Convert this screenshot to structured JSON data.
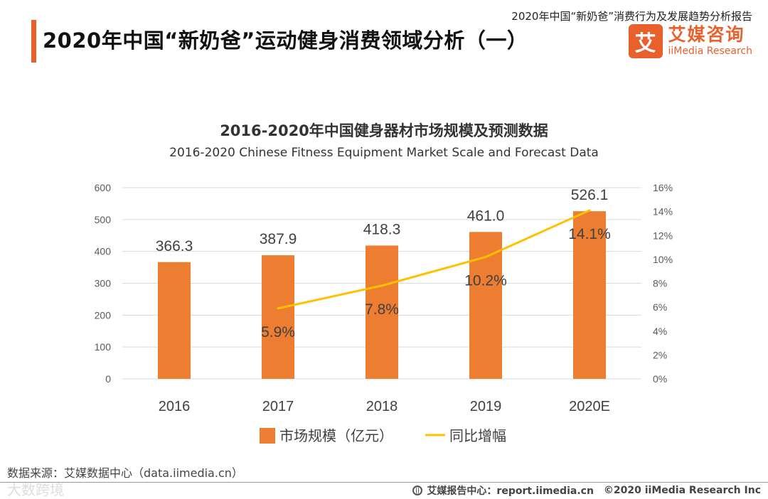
{
  "header": {
    "report_title": "2020年中国“新奶爸”消费行为及发展趋势分析报告",
    "page_title": "2020年中国“新奶爸”运动健身消费领域分析（一）",
    "logo_cn": "艾媒咨询",
    "logo_en": "iiMedia Research",
    "logo_mark": "艾"
  },
  "colors": {
    "accent": "#e8602c",
    "bar": "#ed7d31",
    "line": "#ffc000"
  },
  "chart_data": {
    "type": "bar",
    "title": "2016-2020年中国健身器材市场规模及预测数据",
    "subtitle": "2016-2020 Chinese Fitness Equipment Market Scale and Forecast Data",
    "categories": [
      "2016",
      "2017",
      "2018",
      "2019",
      "2020E"
    ],
    "left_axis": {
      "ticks": [
        "0",
        "100",
        "200",
        "300",
        "400",
        "500",
        "600"
      ],
      "ylim": [
        0,
        600
      ]
    },
    "right_axis": {
      "ticks": [
        "0%",
        "2%",
        "4%",
        "6%",
        "8%",
        "10%",
        "12%",
        "14%",
        "16%"
      ],
      "ylim": [
        0,
        16
      ]
    },
    "series": [
      {
        "name": "市场规模（亿元）",
        "kind": "bar",
        "axis": "left",
        "values": [
          366.3,
          387.9,
          418.3,
          461.0,
          526.1
        ],
        "labels": [
          "366.3",
          "387.9",
          "418.3",
          "461.0",
          "526.1"
        ]
      },
      {
        "name": "同比增幅",
        "kind": "line",
        "axis": "right",
        "values": [
          null,
          5.9,
          7.8,
          10.2,
          14.1
        ],
        "labels": [
          "",
          "5.9%",
          "7.8%",
          "10.2%",
          "14.1%"
        ]
      }
    ],
    "grid": true,
    "legend_position": "bottom"
  },
  "footer": {
    "source": "数据来源：艾媒数据中心（data.iimedia.cn）",
    "center": "艾媒报告中心：report.iimedia.cn",
    "copyright": "©2020  iiMedia Research  Inc",
    "watermark": "大数跨境"
  }
}
